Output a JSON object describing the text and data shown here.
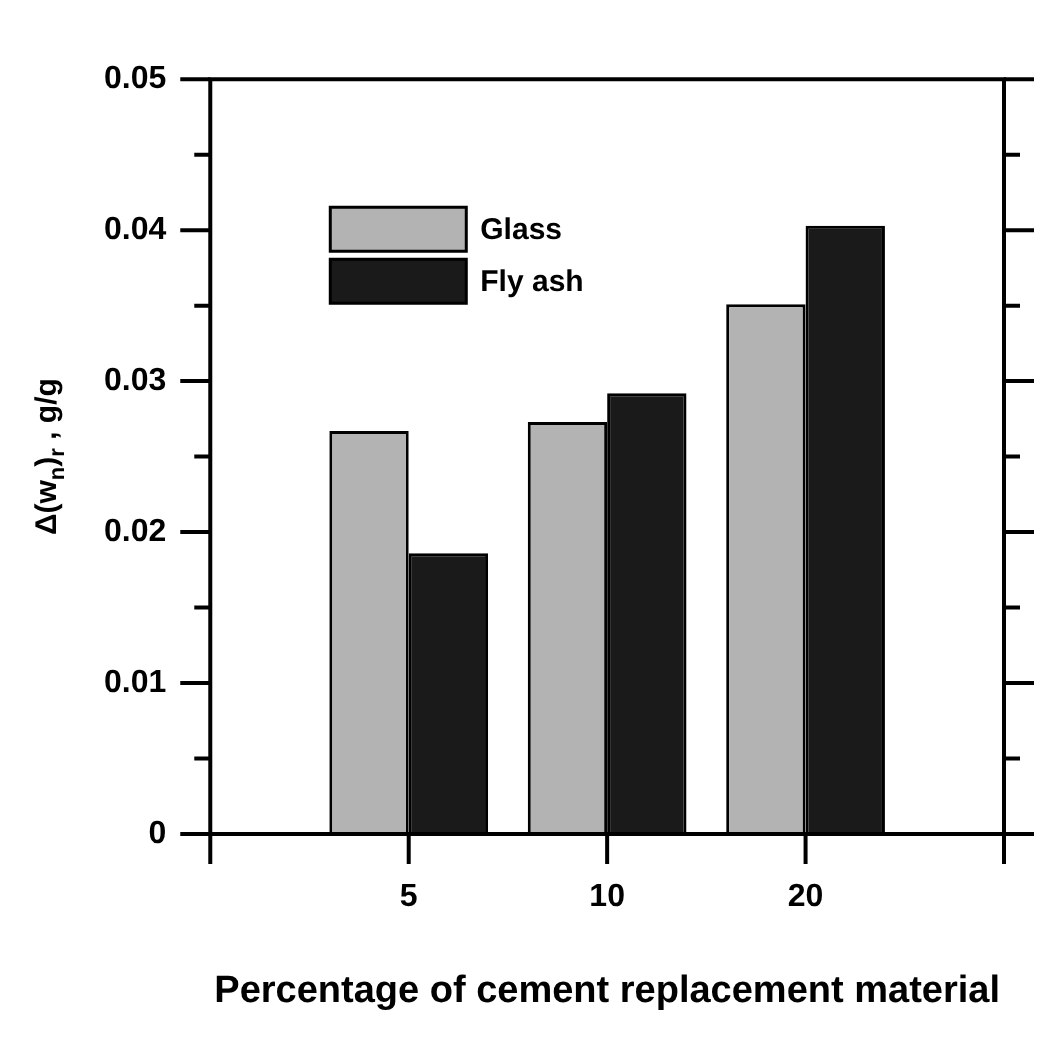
{
  "chart_data": {
    "type": "bar",
    "xlabel": "Percentage of cement replacement material",
    "ylabel": "Δ(w$_{n}$)$_{r}$ , g/g",
    "categories": [
      null,
      "5",
      "10",
      "20",
      null
    ],
    "series": [
      {
        "name": "Glass",
        "color": "#b3b3b3",
        "values": [
          null,
          0.0267,
          0.0273,
          0.0351,
          null
        ]
      },
      {
        "name": "Fly ash",
        "color": "#1a1a1a",
        "values": [
          null,
          0.0186,
          0.0292,
          0.0403,
          null
        ]
      }
    ],
    "ylim": [
      0,
      0.05
    ],
    "yticks": [
      0,
      {
        "value": 0.005,
        "label": null
      },
      0.01,
      {
        "value": 0.015,
        "label": null
      },
      0.02,
      {
        "value": 0.025,
        "label": null
      },
      0.03,
      {
        "value": 0.035,
        "label": null
      },
      0.04,
      {
        "value": 0.045,
        "label": null
      },
      0.05
    ],
    "grid": false,
    "legend": "top left"
  }
}
